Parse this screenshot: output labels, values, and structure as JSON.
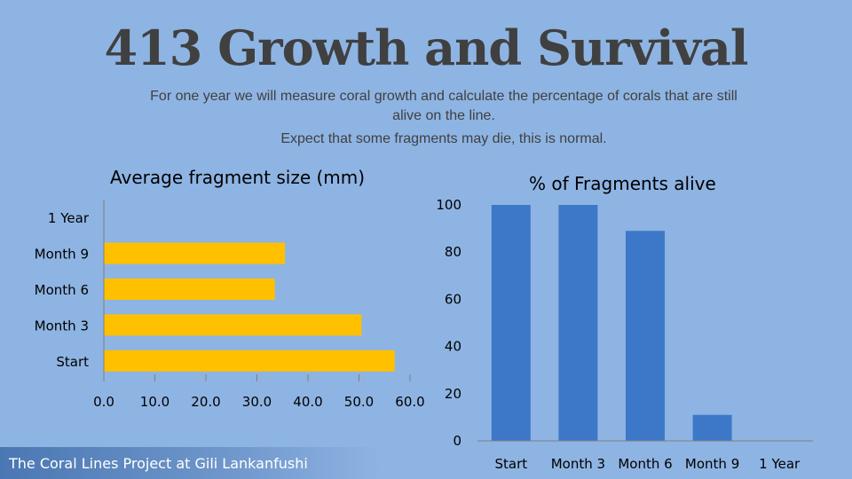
{
  "slide": {
    "title": "413 Growth and Survival",
    "subtitle": "For one year we will measure coral growth and calculate the percentage of corals that are still alive on the line.",
    "subtitle2": "Expect that some fragments may die, this is normal.",
    "footer": "The Coral Lines Project at Gili Lankanfushi"
  },
  "colors": {
    "bar_fill": "#ffc000",
    "column_fill": "#3d78c8",
    "axis": "#7f7f7f"
  },
  "chart_data": [
    {
      "type": "bar",
      "orientation": "horizontal",
      "title": "Average fragment size (mm)",
      "categories": [
        "Start",
        "Month 3",
        "Month 6",
        "Month 9",
        "1 Year"
      ],
      "values": [
        57,
        50.5,
        33.5,
        35.5,
        null
      ],
      "xlim": [
        0,
        60
      ],
      "xticks": [
        "0.0",
        "10.0",
        "20.0",
        "30.0",
        "40.0",
        "50.0",
        "60.0"
      ],
      "grid": false,
      "legend": "none"
    },
    {
      "type": "bar",
      "orientation": "vertical",
      "title": "% of Fragments alive",
      "categories": [
        "Start",
        "Month 3",
        "Month 6",
        "Month 9",
        "1 Year"
      ],
      "values": [
        100,
        100,
        89,
        11,
        null
      ],
      "ylim": [
        0,
        100
      ],
      "yticks": [
        "0",
        "20",
        "40",
        "60",
        "80",
        "100"
      ],
      "grid": false,
      "legend": "none"
    }
  ]
}
